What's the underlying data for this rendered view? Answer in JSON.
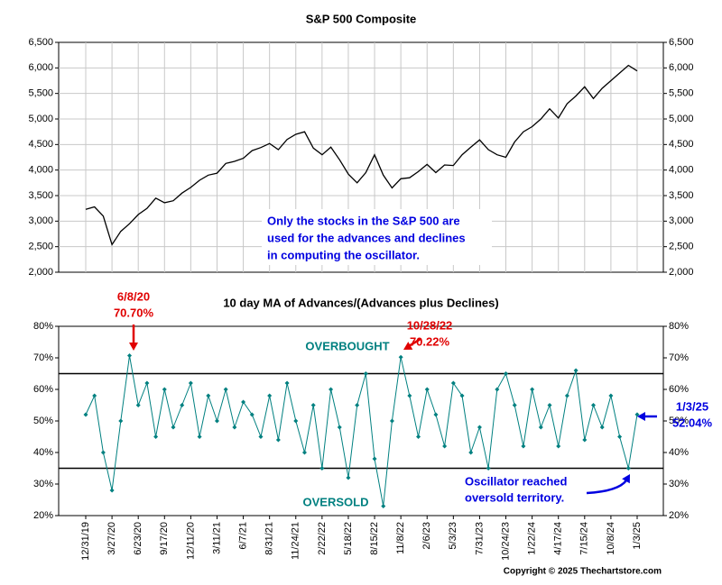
{
  "chart_data": [
    {
      "type": "line",
      "title": "S&P 500 Composite",
      "color": "#000000",
      "categories": [
        "12/31/19",
        null,
        null,
        "3/27/20",
        null,
        null,
        "6/23/20",
        null,
        null,
        "9/17/20",
        null,
        null,
        "12/11/20",
        null,
        null,
        "3/11/21",
        null,
        null,
        "6/7/21",
        null,
        null,
        "8/31/21",
        null,
        null,
        "11/24/21",
        null,
        null,
        "2/22/22",
        null,
        null,
        "5/18/22",
        null,
        null,
        "8/15/22",
        null,
        null,
        "11/8/22",
        null,
        null,
        "2/6/23",
        null,
        null,
        "5/3/23",
        null,
        null,
        "7/31/23",
        null,
        null,
        "10/24/23",
        null,
        null,
        "1/22/24",
        null,
        null,
        "4/17/24",
        null,
        null,
        "7/15/24",
        null,
        null,
        "10/8/24",
        null,
        null,
        "1/3/25"
      ],
      "values": [
        3230,
        3280,
        3100,
        2540,
        2800,
        2950,
        3130,
        3250,
        3450,
        3360,
        3400,
        3550,
        3660,
        3800,
        3900,
        3940,
        4130,
        4170,
        4230,
        4380,
        4440,
        4520,
        4400,
        4600,
        4700,
        4750,
        4430,
        4300,
        4450,
        4200,
        3920,
        3750,
        3950,
        4300,
        3900,
        3650,
        3830,
        3850,
        3970,
        4110,
        3950,
        4100,
        4090,
        4300,
        4450,
        4590,
        4400,
        4300,
        4250,
        4550,
        4750,
        4850,
        5000,
        5200,
        5020,
        5300,
        5450,
        5630,
        5400,
        5600,
        5750,
        5900,
        6050,
        5940
      ],
      "ylim": [
        2000,
        6500
      ],
      "yticks": [
        {
          "value": 2000,
          "label": "2,000"
        },
        {
          "value": 2500,
          "label": "2,500"
        },
        {
          "value": 3000,
          "label": "3,000"
        },
        {
          "value": 3500,
          "label": "3,500"
        },
        {
          "value": 4000,
          "label": "4,000"
        },
        {
          "value": 4500,
          "label": "4,500"
        },
        {
          "value": 5000,
          "label": "5,000"
        },
        {
          "value": 5500,
          "label": "5,500"
        },
        {
          "value": 6000,
          "label": "6,000"
        },
        {
          "value": 6500,
          "label": "6,500"
        }
      ],
      "grid": true,
      "note": [
        "Only the stocks in the S&P 500 are",
        "used for the advances and declines",
        "in computing the oscillator."
      ]
    },
    {
      "type": "line",
      "title": "10 day MA of Advances/(Advances plus Declines)",
      "color": "#008080",
      "categories": [
        "12/31/19",
        null,
        null,
        "3/27/20",
        null,
        null,
        "6/23/20",
        null,
        null,
        "9/17/20",
        null,
        null,
        "12/11/20",
        null,
        null,
        "3/11/21",
        null,
        null,
        "6/7/21",
        null,
        null,
        "8/31/21",
        null,
        null,
        "11/24/21",
        null,
        null,
        "2/22/22",
        null,
        null,
        "5/18/22",
        null,
        null,
        "8/15/22",
        null,
        null,
        "11/8/22",
        null,
        null,
        "2/6/23",
        null,
        null,
        "5/3/23",
        null,
        null,
        "7/31/23",
        null,
        null,
        "10/24/23",
        null,
        null,
        "1/22/24",
        null,
        null,
        "4/17/24",
        null,
        null,
        "7/15/24",
        null,
        null,
        "10/8/24",
        null,
        null,
        "1/3/25"
      ],
      "values": [
        52,
        58,
        40,
        28,
        50,
        70.7,
        55,
        62,
        45,
        60,
        48,
        55,
        62,
        45,
        58,
        50,
        60,
        48,
        56,
        52,
        45,
        58,
        44,
        62,
        50,
        40,
        55,
        35,
        60,
        48,
        32,
        55,
        65,
        38,
        23,
        50,
        70.22,
        58,
        45,
        60,
        52,
        42,
        62,
        58,
        40,
        48,
        35,
        60,
        65,
        55,
        42,
        60,
        48,
        55,
        42,
        58,
        66,
        44,
        55,
        48,
        58,
        45,
        35,
        52.04
      ],
      "ylim": [
        20,
        80
      ],
      "yticks": [
        {
          "value": 20,
          "label": "20%"
        },
        {
          "value": 30,
          "label": "30%"
        },
        {
          "value": 40,
          "label": "40%"
        },
        {
          "value": 50,
          "label": "50%"
        },
        {
          "value": 60,
          "label": "60%"
        },
        {
          "value": 70,
          "label": "70%"
        },
        {
          "value": 80,
          "label": "80%"
        }
      ],
      "reference_lines": [
        35,
        65
      ],
      "annotations": [
        {
          "text": [
            "6/8/20",
            "70.70%"
          ],
          "color": "#e00000",
          "point": 5
        },
        {
          "text": [
            "10/28/22",
            "70.22%"
          ],
          "color": "#e00000",
          "point": 36
        },
        {
          "text": [
            "1/3/25",
            "52.04%"
          ],
          "color": "#0000e0",
          "point": 63
        },
        {
          "text": [
            "OVERBOUGHT"
          ],
          "color": "#008080"
        },
        {
          "text": [
            "OVERSOLD"
          ],
          "color": "#008080"
        },
        {
          "text": [
            "Oscillator reached",
            "oversold territory."
          ],
          "color": "#0000e0"
        }
      ]
    }
  ],
  "footer": "Copyright © 2025 Thechartstore.com"
}
